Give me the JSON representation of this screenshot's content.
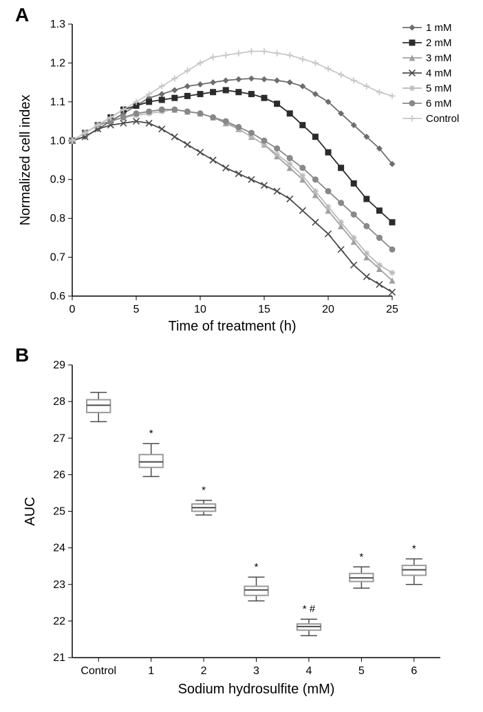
{
  "panelA": {
    "label": "A",
    "type": "line",
    "xlabel": "Time of treatment (h)",
    "ylabel": "Normalized cell index",
    "label_fontsize": 20,
    "tick_fontsize": 16,
    "xlim": [
      0,
      25
    ],
    "ylim": [
      0.6,
      1.3
    ],
    "xtick_step": 5,
    "ytick_step": 0.1,
    "legend_fontsize": 15,
    "background_color": "#ffffff",
    "axis_color": "#000000",
    "series": [
      {
        "name": "1 mM",
        "color": "#6d6d6d",
        "marker": "diamond",
        "x": [
          0,
          1,
          2,
          3,
          4,
          5,
          6,
          7,
          8,
          9,
          10,
          11,
          12,
          13,
          14,
          15,
          16,
          17,
          18,
          19,
          20,
          21,
          22,
          23,
          24,
          25
        ],
        "y": [
          1.0,
          1.01,
          1.03,
          1.05,
          1.07,
          1.09,
          1.11,
          1.12,
          1.13,
          1.14,
          1.145,
          1.15,
          1.155,
          1.158,
          1.16,
          1.158,
          1.155,
          1.15,
          1.14,
          1.12,
          1.1,
          1.07,
          1.04,
          1.01,
          0.98,
          0.94
        ]
      },
      {
        "name": "2 mM",
        "color": "#2b2b2b",
        "marker": "square",
        "x": [
          0,
          1,
          2,
          3,
          4,
          5,
          6,
          7,
          8,
          9,
          10,
          11,
          12,
          13,
          14,
          15,
          16,
          17,
          18,
          19,
          20,
          21,
          22,
          23,
          24,
          25
        ],
        "y": [
          1.0,
          1.02,
          1.04,
          1.06,
          1.08,
          1.09,
          1.1,
          1.105,
          1.11,
          1.115,
          1.12,
          1.125,
          1.13,
          1.125,
          1.12,
          1.11,
          1.095,
          1.07,
          1.04,
          1.01,
          0.97,
          0.93,
          0.89,
          0.85,
          0.82,
          0.79
        ]
      },
      {
        "name": "3 mM",
        "color": "#a0a0a0",
        "marker": "triangle",
        "x": [
          0,
          1,
          2,
          3,
          4,
          5,
          6,
          7,
          8,
          9,
          10,
          11,
          12,
          13,
          14,
          15,
          16,
          17,
          18,
          19,
          20,
          21,
          22,
          23,
          24,
          25
        ],
        "y": [
          1.0,
          1.02,
          1.04,
          1.05,
          1.06,
          1.07,
          1.075,
          1.08,
          1.08,
          1.075,
          1.07,
          1.06,
          1.045,
          1.03,
          1.01,
          0.99,
          0.96,
          0.93,
          0.9,
          0.86,
          0.82,
          0.78,
          0.74,
          0.7,
          0.67,
          0.64
        ]
      },
      {
        "name": "4 mM",
        "color": "#4a4a4a",
        "marker": "x",
        "x": [
          0,
          1,
          2,
          3,
          4,
          5,
          6,
          7,
          8,
          9,
          10,
          11,
          12,
          13,
          14,
          15,
          16,
          17,
          18,
          19,
          20,
          21,
          22,
          23,
          24,
          25
        ],
        "y": [
          1.0,
          1.01,
          1.03,
          1.04,
          1.045,
          1.05,
          1.045,
          1.03,
          1.01,
          0.99,
          0.97,
          0.95,
          0.93,
          0.915,
          0.9,
          0.885,
          0.87,
          0.85,
          0.82,
          0.79,
          0.76,
          0.72,
          0.68,
          0.65,
          0.63,
          0.61
        ]
      },
      {
        "name": "5 mM",
        "color": "#b8b8b8",
        "marker": "star",
        "x": [
          0,
          1,
          2,
          3,
          4,
          5,
          6,
          7,
          8,
          9,
          10,
          11,
          12,
          13,
          14,
          15,
          16,
          17,
          18,
          19,
          20,
          21,
          22,
          23,
          24,
          25
        ],
        "y": [
          1.0,
          1.02,
          1.04,
          1.05,
          1.06,
          1.065,
          1.07,
          1.075,
          1.08,
          1.075,
          1.07,
          1.06,
          1.05,
          1.03,
          1.01,
          0.99,
          0.965,
          0.94,
          0.91,
          0.87,
          0.83,
          0.79,
          0.75,
          0.71,
          0.68,
          0.66
        ]
      },
      {
        "name": "6 mM",
        "color": "#888888",
        "marker": "circle",
        "x": [
          0,
          1,
          2,
          3,
          4,
          5,
          6,
          7,
          8,
          9,
          10,
          11,
          12,
          13,
          14,
          15,
          16,
          17,
          18,
          19,
          20,
          21,
          22,
          23,
          24,
          25
        ],
        "y": [
          1.0,
          1.02,
          1.04,
          1.05,
          1.06,
          1.07,
          1.075,
          1.08,
          1.08,
          1.075,
          1.07,
          1.06,
          1.05,
          1.035,
          1.02,
          1.0,
          0.98,
          0.955,
          0.93,
          0.9,
          0.87,
          0.84,
          0.81,
          0.78,
          0.75,
          0.72
        ]
      },
      {
        "name": "Control",
        "color": "#c8c8c8",
        "marker": "plus",
        "x": [
          0,
          1,
          2,
          3,
          4,
          5,
          6,
          7,
          8,
          9,
          10,
          11,
          12,
          13,
          14,
          15,
          16,
          17,
          18,
          19,
          20,
          21,
          22,
          23,
          24,
          25
        ],
        "y": [
          1.0,
          1.02,
          1.04,
          1.06,
          1.08,
          1.1,
          1.12,
          1.14,
          1.16,
          1.18,
          1.2,
          1.215,
          1.22,
          1.225,
          1.23,
          1.23,
          1.225,
          1.22,
          1.21,
          1.2,
          1.185,
          1.17,
          1.155,
          1.14,
          1.125,
          1.115
        ]
      }
    ]
  },
  "panelB": {
    "label": "B",
    "type": "boxplot",
    "xlabel": "Sodium hydrosulfite (mM)",
    "ylabel": "AUC",
    "label_fontsize": 20,
    "tick_fontsize": 16,
    "ylim": [
      21,
      29
    ],
    "ytick_step": 1,
    "categories": [
      "Control",
      "1",
      "2",
      "3",
      "4",
      "5",
      "6"
    ],
    "box_color": "#9a9a9a",
    "whisker_color": "#4a4a4a",
    "background_color": "#ffffff",
    "axis_color": "#000000",
    "box_width": 0.45,
    "boxes": [
      {
        "cat": "Control",
        "min": 27.45,
        "q1": 27.7,
        "median": 27.9,
        "q3": 28.05,
        "max": 28.25,
        "annot": ""
      },
      {
        "cat": "1",
        "min": 25.95,
        "q1": 26.2,
        "median": 26.35,
        "q3": 26.55,
        "max": 26.85,
        "annot": "*"
      },
      {
        "cat": "2",
        "min": 24.9,
        "q1": 25.0,
        "median": 25.1,
        "q3": 25.2,
        "max": 25.3,
        "annot": "*"
      },
      {
        "cat": "3",
        "min": 22.55,
        "q1": 22.7,
        "median": 22.85,
        "q3": 22.95,
        "max": 23.2,
        "annot": "*"
      },
      {
        "cat": "4",
        "min": 21.6,
        "q1": 21.75,
        "median": 21.85,
        "q3": 21.92,
        "max": 22.05,
        "annot": "* #"
      },
      {
        "cat": "5",
        "min": 22.9,
        "q1": 23.08,
        "median": 23.18,
        "q3": 23.3,
        "max": 23.48,
        "annot": "*"
      },
      {
        "cat": "6",
        "min": 23.0,
        "q1": 23.25,
        "median": 23.4,
        "q3": 23.52,
        "max": 23.7,
        "annot": "*"
      }
    ]
  }
}
